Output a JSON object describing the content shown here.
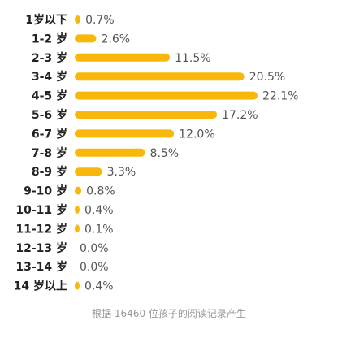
{
  "chart_data": {
    "type": "bar",
    "orientation": "horizontal",
    "categories": [
      "1岁以下",
      "1-2 岁",
      "2-3 岁",
      "3-4 岁",
      "4-5 岁",
      "5-6 岁",
      "6-7 岁",
      "7-8 岁",
      "8-9 岁",
      "9-10 岁",
      "10-11 岁",
      "11-12 岁",
      "12-13 岁",
      "13-14 岁",
      "14 岁以上"
    ],
    "values": [
      0.7,
      2.6,
      11.5,
      20.5,
      22.1,
      17.2,
      12.0,
      8.5,
      3.3,
      0.8,
      0.4,
      0.1,
      0.0,
      0.0,
      0.4
    ],
    "value_labels": [
      "0.7%",
      "2.6%",
      "11.5%",
      "20.5%",
      "22.1%",
      "17.2%",
      "12.0%",
      "8.5%",
      "3.3%",
      "0.8%",
      "0.4%",
      "0.1%",
      "0.0%",
      "0.0%",
      "0.4%"
    ],
    "unit": "%",
    "bar_color": "#F8B80B",
    "grid": false,
    "legend": "none"
  },
  "footnote": "根据 16460 位孩子的阅读记录产生"
}
